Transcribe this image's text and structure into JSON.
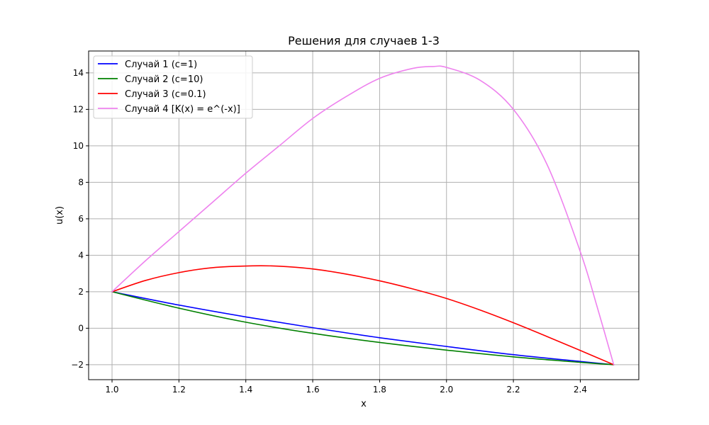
{
  "chart_data": {
    "type": "line",
    "title": "Решения для случаев 1-3",
    "xlabel": "x",
    "ylabel": "u(x)",
    "xlim": [
      0.93,
      2.575
    ],
    "ylim": [
      -2.82,
      15.2
    ],
    "xticks": [
      1.0,
      1.2,
      1.4,
      1.6,
      1.8,
      2.0,
      2.2,
      2.4
    ],
    "xtick_labels": [
      "1.0",
      "1.2",
      "1.4",
      "1.6",
      "1.8",
      "2.0",
      "2.2",
      "2.4"
    ],
    "yticks": [
      -2,
      0,
      2,
      4,
      6,
      8,
      10,
      12,
      14
    ],
    "ytick_labels": [
      "−2",
      "0",
      "2",
      "4",
      "6",
      "8",
      "10",
      "12",
      "14"
    ],
    "grid": true,
    "legend_position": "top-left",
    "series": [
      {
        "name": "Случай 1 (c=1)",
        "color": "#0000ff",
        "x": [
          1.0,
          1.2,
          1.4,
          1.6,
          1.8,
          2.0,
          2.2,
          2.4,
          2.5
        ],
        "y": [
          2.0,
          1.27,
          0.62,
          0.03,
          -0.52,
          -1.0,
          -1.45,
          -1.82,
          -2.0
        ]
      },
      {
        "name": "Случай 2 (c=10)",
        "color": "#008000",
        "x": [
          1.0,
          1.2,
          1.4,
          1.6,
          1.8,
          2.0,
          2.2,
          2.4,
          2.5
        ],
        "y": [
          2.0,
          1.1,
          0.33,
          -0.28,
          -0.78,
          -1.2,
          -1.57,
          -1.87,
          -2.0
        ]
      },
      {
        "name": "Случай 3 (c=0.1)",
        "color": "#ff0000",
        "x": [
          1.0,
          1.1,
          1.2,
          1.3,
          1.42,
          1.5,
          1.6,
          1.7,
          1.8,
          1.9,
          2.0,
          2.1,
          2.2,
          2.3,
          2.4,
          2.5
        ],
        "y": [
          2.0,
          2.62,
          3.05,
          3.32,
          3.42,
          3.4,
          3.25,
          2.97,
          2.6,
          2.15,
          1.63,
          1.0,
          0.3,
          -0.45,
          -1.22,
          -2.0
        ]
      },
      {
        "name": "Случай 4 [K(x) = e^(-x)]",
        "color": "#ee82ee",
        "x": [
          1.0,
          1.1,
          1.2,
          1.3,
          1.4,
          1.5,
          1.6,
          1.7,
          1.8,
          1.9,
          1.96,
          2.0,
          2.1,
          2.2,
          2.3,
          2.4,
          2.45,
          2.5
        ],
        "y": [
          2.0,
          3.7,
          5.3,
          6.9,
          8.5,
          10.0,
          11.5,
          12.7,
          13.7,
          14.25,
          14.35,
          14.3,
          13.6,
          12.0,
          9.0,
          4.2,
          1.2,
          -2.0
        ]
      }
    ]
  }
}
